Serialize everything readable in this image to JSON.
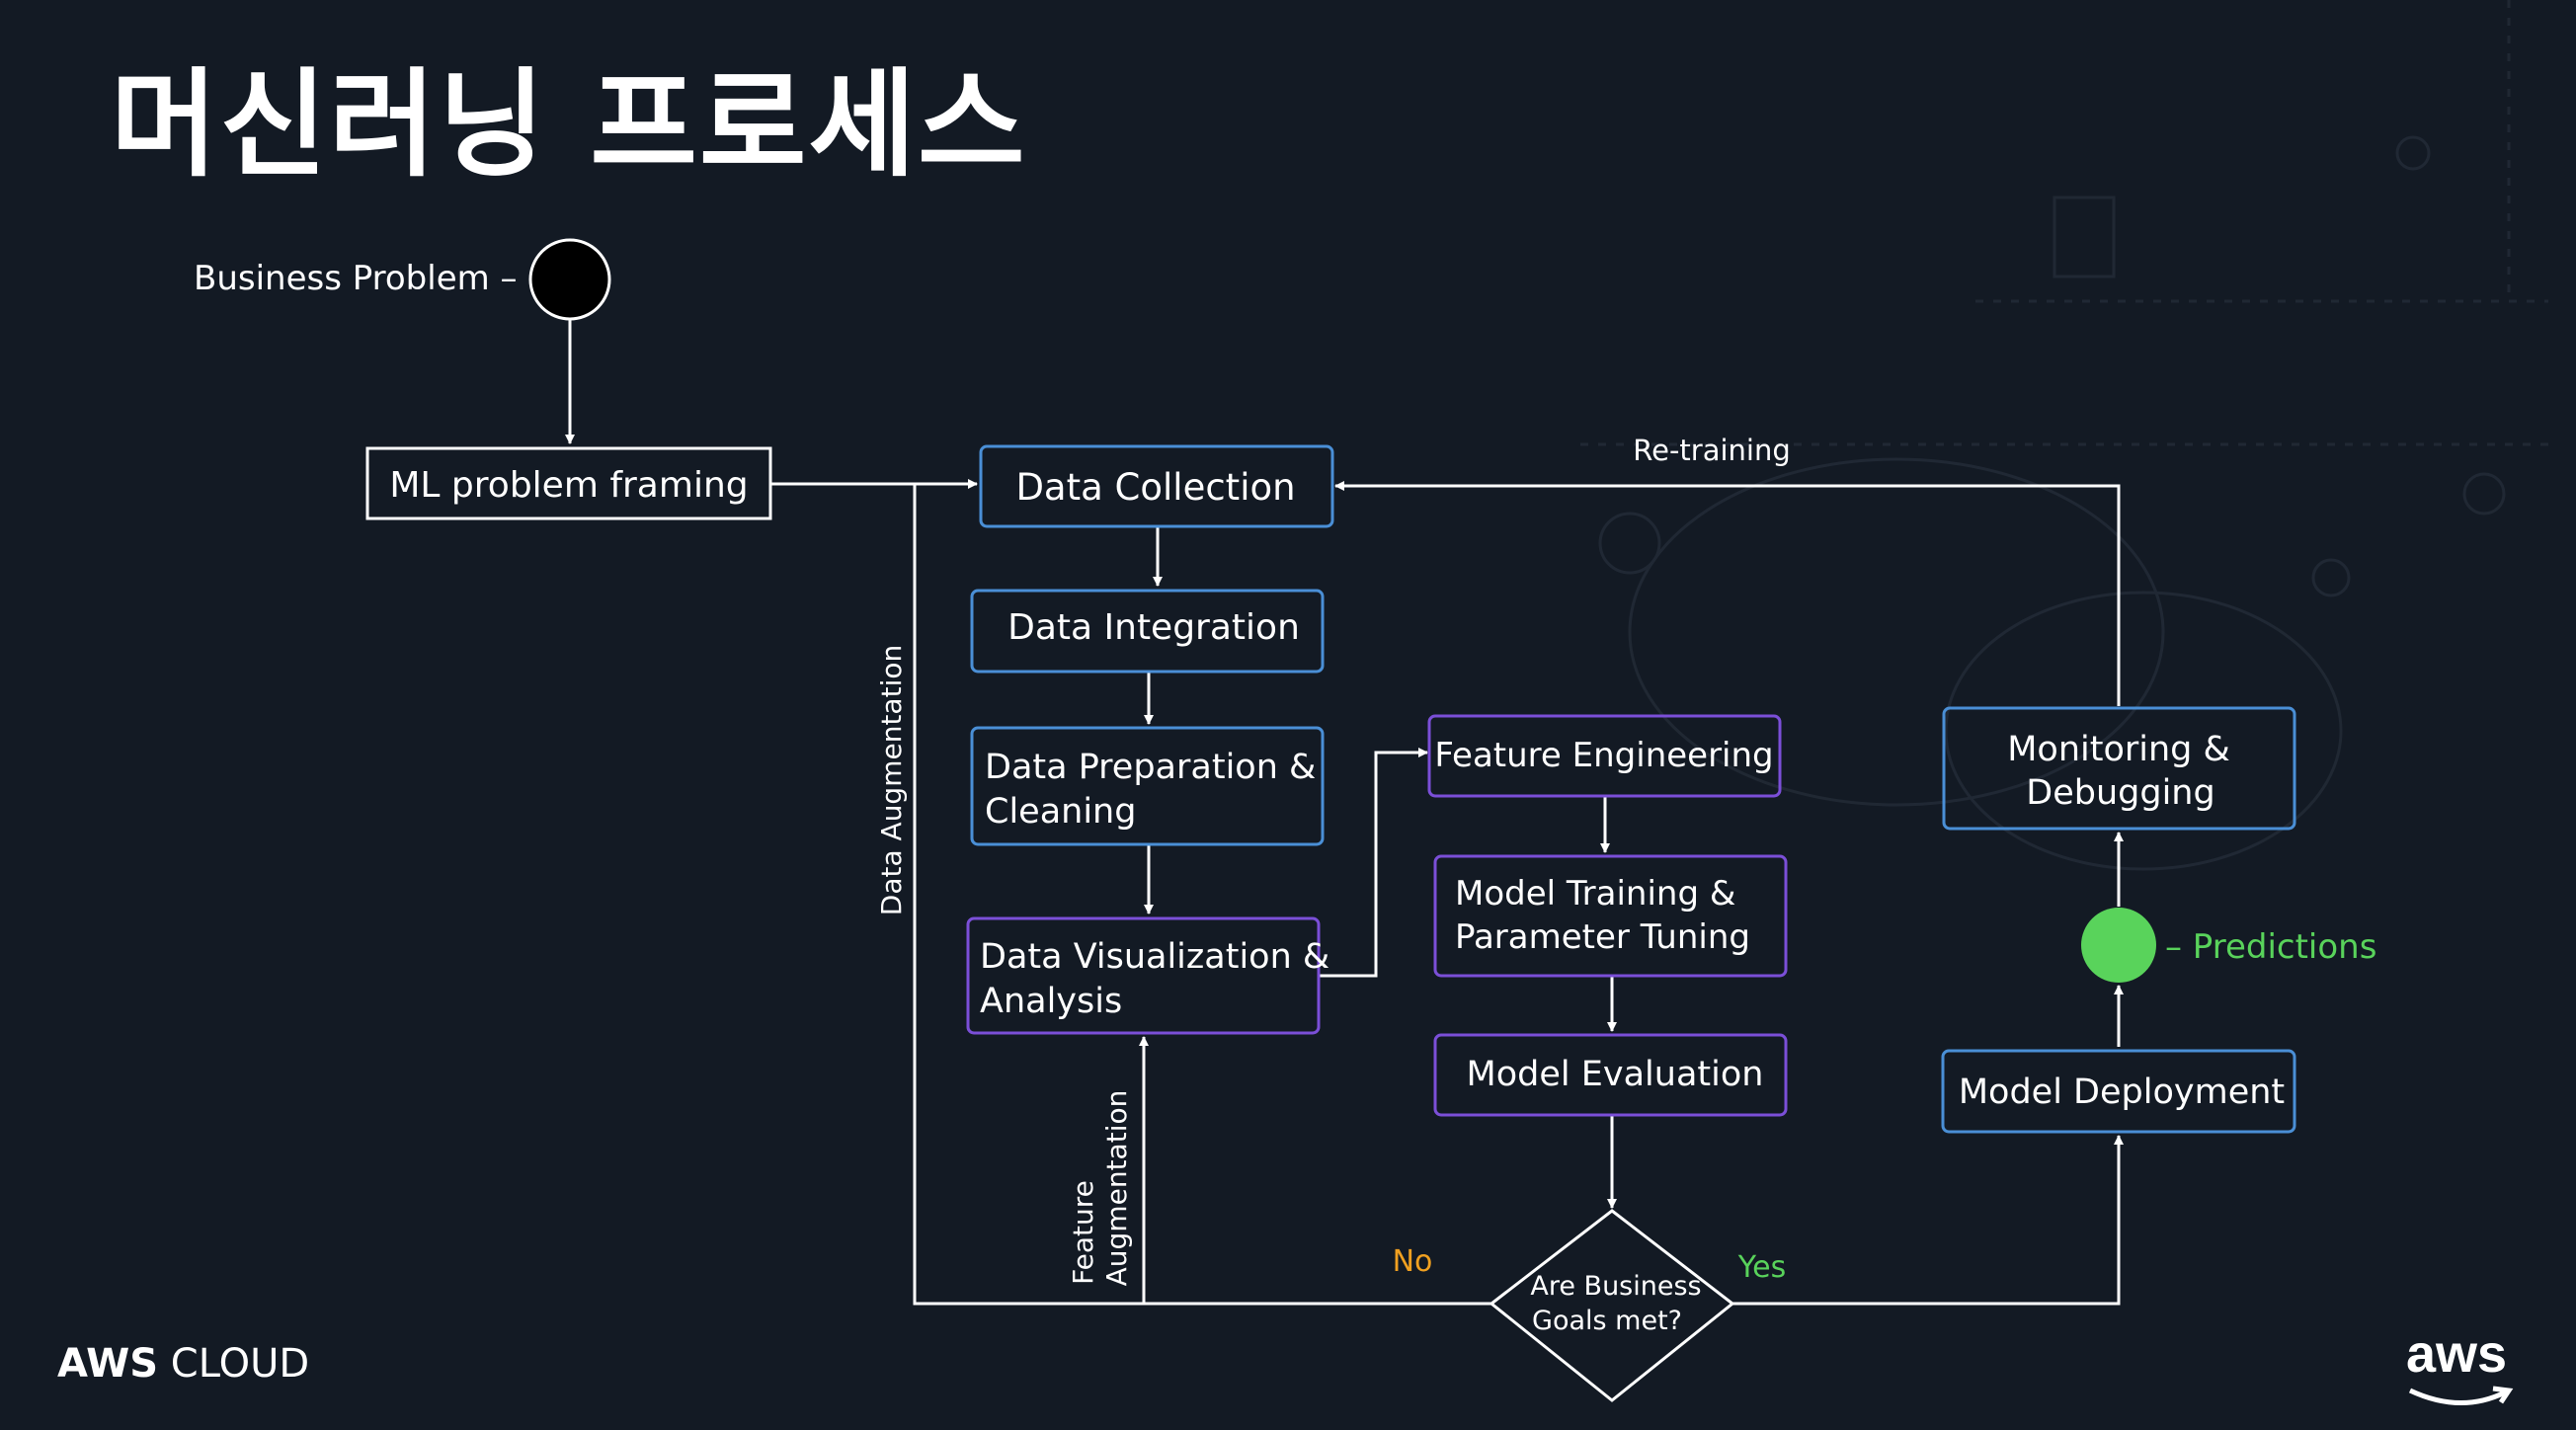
{
  "slide": {
    "title": "머신러닝 프로세스",
    "footer_brand_bold": "AWS",
    "footer_brand_rest": " CLOUD",
    "logo_text": "aws"
  },
  "diagram": {
    "start_label": "Business Problem –",
    "nodes": {
      "ml_framing": "ML problem framing",
      "data_collection": "Data Collection",
      "data_integration": "Data Integration",
      "data_prep_1": "Data Preparation &",
      "data_prep_2": "Cleaning",
      "data_viz_1": "Data Visualization &",
      "data_viz_2": "Analysis",
      "feature_eng": "Feature Engineering",
      "model_train_1": "Model Training &",
      "model_train_2": "Parameter Tuning",
      "model_eval": "Model Evaluation",
      "decision_1": "Are Business",
      "decision_2": "Goals met?",
      "model_deploy": "Model Deployment",
      "monitoring_1": "Monitoring &",
      "monitoring_2": "Debugging"
    },
    "edge_labels": {
      "retraining": "Re-training",
      "data_augmentation": "Data Augmentation",
      "feature_1": "Feature",
      "feature_2": "Augmentation",
      "no": "No",
      "yes": "Yes",
      "predictions": "– Predictions"
    },
    "colors": {
      "blue_border": "#4a8fd6",
      "purple_border": "#7b4fd8",
      "white_border": "#ffffff",
      "green": "#59d35b",
      "orange": "#f0a020",
      "background": "#131a24"
    }
  }
}
